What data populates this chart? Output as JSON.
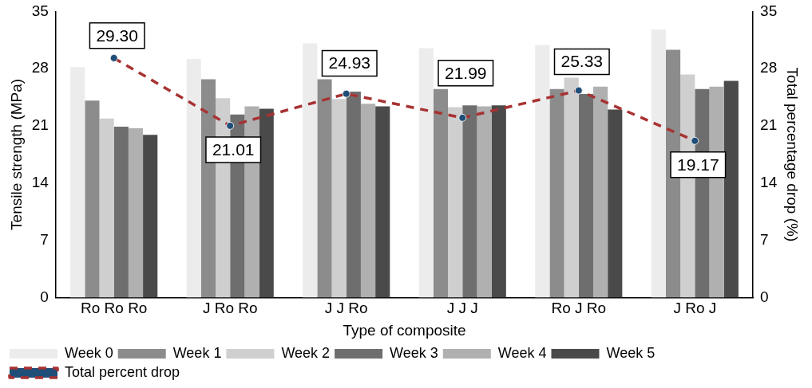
{
  "chart_data": {
    "type": "bar",
    "xlabel": "Type of composite",
    "ylabel": "Tensile strength (MPa)",
    "y2label": "Total percentage drop (%)",
    "categories": [
      "Ro Ro Ro",
      "J Ro Ro",
      "J J Ro",
      "J J J",
      "Ro J Ro",
      "J Ro J"
    ],
    "series": [
      {
        "name": "Week 0",
        "color": "#ececec",
        "values": [
          28.2,
          29.2,
          31.1,
          30.5,
          30.9,
          32.8
        ]
      },
      {
        "name": "Week 1",
        "color": "#8c8c8c",
        "values": [
          24.1,
          26.7,
          26.7,
          25.5,
          25.5,
          30.3
        ]
      },
      {
        "name": "Week 2",
        "color": "#cfcfcf",
        "values": [
          21.9,
          24.4,
          24.3,
          23.3,
          26.9,
          27.3
        ]
      },
      {
        "name": "Week 3",
        "color": "#6e6e6e",
        "values": [
          20.9,
          22.4,
          25.2,
          23.5,
          24.9,
          25.5
        ]
      },
      {
        "name": "Week 4",
        "color": "#b0b0b0",
        "values": [
          20.7,
          23.4,
          23.7,
          23.4,
          25.8,
          25.8
        ]
      },
      {
        "name": "Week 5",
        "color": "#4a4a4a",
        "values": [
          19.9,
          23.1,
          23.4,
          23.5,
          23.0,
          26.5
        ]
      },
      {
        "name": "Total percent drop",
        "type": "line",
        "axis": "y2",
        "color": "#a83232",
        "line_style": "dashed",
        "marker": "circle",
        "values": [
          29.3,
          21.01,
          24.93,
          21.99,
          25.33,
          19.17
        ],
        "value_labels": [
          "29.30",
          "21.01",
          "24.93",
          "21.99",
          "25.33",
          "19.17"
        ]
      }
    ],
    "ylim": [
      0,
      35
    ],
    "yticks": [
      0,
      7,
      14,
      21,
      28,
      35
    ],
    "y2lim": [
      0,
      35
    ],
    "y2ticks": [
      0,
      7,
      14,
      21,
      28,
      35
    ],
    "grid": false,
    "legend": "bottom"
  }
}
